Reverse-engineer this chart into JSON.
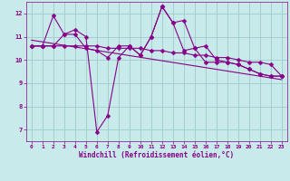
{
  "xlabel": "Windchill (Refroidissement éolien,°C)",
  "bg_color": "#c8eaea",
  "grid_color": "#a0cccc",
  "line_color": "#880088",
  "marker": "D",
  "marker_size": 2.5,
  "line_width": 0.8,
  "xlim": [
    -0.5,
    23.5
  ],
  "ylim": [
    6.5,
    12.5
  ],
  "yticks": [
    7,
    8,
    9,
    10,
    11,
    12
  ],
  "xticks": [
    0,
    1,
    2,
    3,
    4,
    5,
    6,
    7,
    8,
    9,
    10,
    11,
    12,
    13,
    14,
    15,
    16,
    17,
    18,
    19,
    20,
    21,
    22,
    23
  ],
  "series1_x": [
    0,
    1,
    2,
    3,
    4,
    5,
    6,
    7,
    8,
    9,
    10,
    11,
    12,
    13,
    14,
    15,
    16,
    17,
    18,
    19,
    20,
    21,
    22,
    23
  ],
  "series1_y": [
    10.6,
    10.6,
    11.9,
    11.1,
    11.1,
    10.5,
    10.4,
    10.1,
    10.6,
    10.6,
    10.2,
    11.0,
    12.3,
    11.6,
    11.7,
    10.5,
    10.6,
    10.0,
    9.9,
    9.8,
    9.6,
    9.4,
    9.3,
    9.3
  ],
  "series2_x": [
    0,
    1,
    2,
    3,
    4,
    5,
    6,
    7,
    8,
    9,
    10,
    11,
    12,
    13,
    14,
    15,
    16,
    17,
    18,
    19,
    20,
    21,
    22,
    23
  ],
  "series2_y": [
    10.6,
    10.6,
    10.6,
    11.1,
    11.3,
    11.0,
    6.9,
    7.6,
    10.1,
    10.6,
    10.2,
    11.0,
    12.3,
    11.6,
    10.4,
    10.5,
    9.9,
    9.9,
    9.9,
    9.8,
    9.6,
    9.4,
    9.3,
    9.3
  ],
  "series3_x": [
    0,
    1,
    2,
    3,
    4,
    5,
    6,
    7,
    8,
    9,
    10,
    11,
    12,
    13,
    14,
    15,
    16,
    17,
    18,
    19,
    20,
    21,
    22,
    23
  ],
  "series3_y": [
    10.6,
    10.6,
    10.6,
    10.6,
    10.6,
    10.6,
    10.6,
    10.5,
    10.5,
    10.5,
    10.5,
    10.4,
    10.4,
    10.3,
    10.3,
    10.2,
    10.2,
    10.1,
    10.1,
    10.0,
    9.9,
    9.9,
    9.8,
    9.3
  ],
  "trend_x": [
    0,
    23
  ],
  "trend_y": [
    10.85,
    9.15
  ]
}
